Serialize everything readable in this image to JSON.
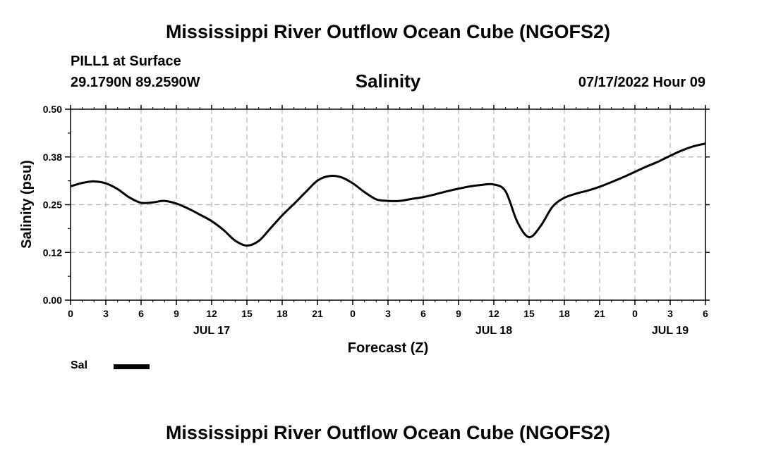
{
  "header": {
    "title": "Mississippi River Outflow Ocean Cube (NGOFS2)",
    "station": "PILL1 at Surface",
    "coords": "29.1790N  89.2590W",
    "variable": "Salinity",
    "datetime": "07/17/2022 Hour 09"
  },
  "footer": {
    "title": "Mississippi River Outflow Ocean Cube (NGOFS2)"
  },
  "legend": {
    "label": "Sal"
  },
  "colors": {
    "line": "#000000",
    "grid": "#b3b3b3",
    "background": "#ffffff"
  },
  "chart_data": {
    "type": "line",
    "title": "Salinity",
    "xlabel": "Forecast (Z)",
    "ylabel": "Salinity (psu)",
    "ylim": [
      0,
      0.5
    ],
    "xlim": [
      0,
      54
    ],
    "y_ticks": [
      {
        "value": 0.0,
        "label": "0.00"
      },
      {
        "value": 0.125,
        "label": "0.12"
      },
      {
        "value": 0.25,
        "label": "0.25"
      },
      {
        "value": 0.375,
        "label": "0.38"
      },
      {
        "value": 0.5,
        "label": "0.50"
      }
    ],
    "x_ticks": [
      {
        "value": 0,
        "label": "0"
      },
      {
        "value": 3,
        "label": "3"
      },
      {
        "value": 6,
        "label": "6"
      },
      {
        "value": 9,
        "label": "9"
      },
      {
        "value": 12,
        "label": "12"
      },
      {
        "value": 15,
        "label": "15"
      },
      {
        "value": 18,
        "label": "18"
      },
      {
        "value": 21,
        "label": "21"
      },
      {
        "value": 24,
        "label": "0"
      },
      {
        "value": 27,
        "label": "3"
      },
      {
        "value": 30,
        "label": "6"
      },
      {
        "value": 33,
        "label": "9"
      },
      {
        "value": 36,
        "label": "12"
      },
      {
        "value": 39,
        "label": "15"
      },
      {
        "value": 42,
        "label": "18"
      },
      {
        "value": 45,
        "label": "21"
      },
      {
        "value": 48,
        "label": "0"
      },
      {
        "value": 51,
        "label": "3"
      },
      {
        "value": 54,
        "label": "6"
      }
    ],
    "date_labels": [
      {
        "value": 12,
        "label": "JUL 17"
      },
      {
        "value": 36,
        "label": "JUL 18"
      },
      {
        "value": 51,
        "label": "JUL 19"
      }
    ],
    "grid": true,
    "series": [
      {
        "name": "Sal",
        "x": [
          0,
          1,
          2,
          3,
          4,
          5,
          6,
          7,
          8,
          9,
          10,
          11,
          12,
          13,
          14,
          15,
          16,
          17,
          18,
          19,
          20,
          21,
          22,
          23,
          24,
          25,
          26,
          27,
          28,
          29,
          30,
          31,
          32,
          33,
          34,
          35,
          36,
          37,
          38,
          39,
          40,
          41,
          42,
          43,
          44,
          45,
          46,
          47,
          48,
          49,
          50,
          51,
          52,
          53,
          54
        ],
        "values": [
          0.298,
          0.307,
          0.311,
          0.306,
          0.291,
          0.269,
          0.255,
          0.256,
          0.26,
          0.253,
          0.24,
          0.224,
          0.207,
          0.184,
          0.156,
          0.143,
          0.155,
          0.188,
          0.222,
          0.252,
          0.283,
          0.313,
          0.325,
          0.322,
          0.306,
          0.283,
          0.264,
          0.26,
          0.26,
          0.265,
          0.27,
          0.277,
          0.285,
          0.292,
          0.298,
          0.302,
          0.303,
          0.285,
          0.205,
          0.165,
          0.195,
          0.245,
          0.268,
          0.279,
          0.287,
          0.297,
          0.309,
          0.322,
          0.336,
          0.35,
          0.363,
          0.378,
          0.392,
          0.403,
          0.41
        ]
      }
    ]
  }
}
